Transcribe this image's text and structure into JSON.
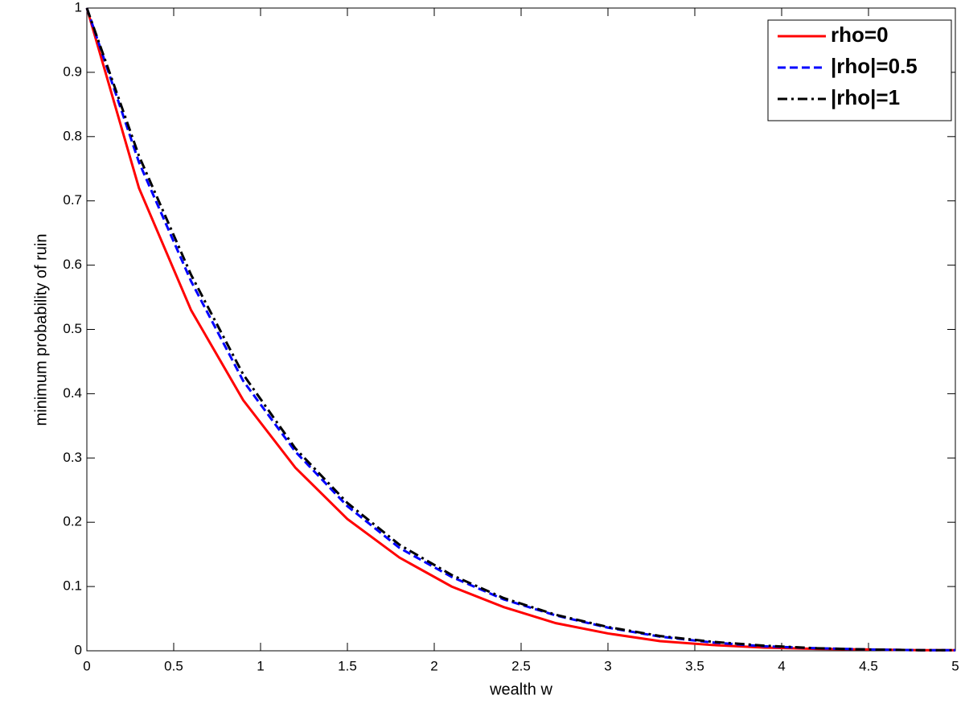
{
  "chart_data": {
    "type": "line",
    "xlabel": "wealth w",
    "ylabel": "minimum probability of ruin",
    "x": [
      0,
      0.3,
      0.6,
      0.9,
      1.2,
      1.5,
      1.8,
      2.1,
      2.4,
      2.7,
      3.0,
      3.3,
      3.6,
      3.9,
      4.2,
      4.5,
      4.8,
      5.0
    ],
    "series": [
      {
        "name": "rho=0",
        "color": "#ff0000",
        "linestyle": "solid",
        "values": [
          1,
          0.72,
          0.53,
          0.39,
          0.285,
          0.205,
          0.145,
          0.1,
          0.068,
          0.043,
          0.027,
          0.015,
          0.009,
          0.005,
          0.003,
          0.002,
          0.001,
          0.001
        ]
      },
      {
        "name": "|rho|=0.5",
        "color": "#0000ff",
        "linestyle": "dashed",
        "values": [
          1,
          0.76,
          0.575,
          0.42,
          0.31,
          0.225,
          0.16,
          0.115,
          0.08,
          0.055,
          0.036,
          0.022,
          0.013,
          0.007,
          0.004,
          0.002,
          0.001,
          0.001
        ]
      },
      {
        "name": "|rho|=1",
        "color": "#000000",
        "linestyle": "dashdot",
        "values": [
          1,
          0.77,
          0.585,
          0.43,
          0.315,
          0.23,
          0.165,
          0.118,
          0.082,
          0.056,
          0.037,
          0.023,
          0.014,
          0.008,
          0.004,
          0.002,
          0.001,
          0.001
        ]
      }
    ],
    "xlim": [
      0,
      5
    ],
    "ylim": [
      0,
      1
    ],
    "xticks": [
      0,
      0.5,
      1,
      1.5,
      2,
      2.5,
      3,
      3.5,
      4,
      4.5,
      5
    ],
    "yticks": [
      0,
      0.1,
      0.2,
      0.3,
      0.4,
      0.5,
      0.6,
      0.7,
      0.8,
      0.9,
      1
    ],
    "grid": false,
    "legend": "upper right"
  }
}
